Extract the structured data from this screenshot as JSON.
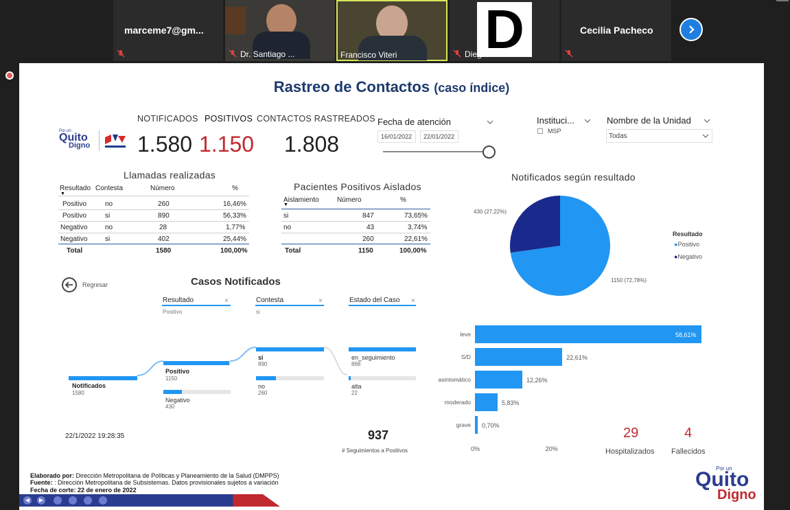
{
  "participants": [
    {
      "name": "marceme7@gm..."
    },
    {
      "name": "Dr. Santiago ..."
    },
    {
      "name": "Francisco Viteri"
    },
    {
      "name": "Diego Jurado"
    },
    {
      "name": "Cecilia Pacheco"
    }
  ],
  "diego_initial": "D",
  "slide": {
    "title": "Rastreo de Contactos",
    "title_suffix": "(caso índice)",
    "logo_line1": "Por un",
    "logo_line2": "Quito",
    "logo_line3": "Digno",
    "kpis": {
      "notificados_label": "NOTIFICADOS",
      "notificados_value": "1.580",
      "positivos_label": "POSITIVOS",
      "positivos_value": "1.150",
      "contactos_label": "CONTACTOS RASTREADOS",
      "contactos_value": "1.808"
    },
    "filters": {
      "fecha_label": "Fecha de atención",
      "fecha_from": "16/01/2022",
      "fecha_to": "22/01/2022",
      "institucion_label": "Instituci...",
      "institucion_option": "MSP",
      "unidad_label": "Nombre de la Unidad",
      "unidad_value": "Todas"
    },
    "llamadas": {
      "title": "Llamadas realizadas",
      "headers": [
        "Resultado",
        "Contesta",
        "Número",
        "%"
      ],
      "rows": [
        [
          "Positivo",
          "no",
          "260",
          "16,46%"
        ],
        [
          "Positivo",
          "si",
          "890",
          "56,33%"
        ],
        [
          "Negativo",
          "no",
          "28",
          "1,77%"
        ],
        [
          "Negativo",
          "si",
          "402",
          "25,44%"
        ]
      ],
      "total": [
        "Total",
        "",
        "1580",
        "100,00%"
      ]
    },
    "aislados": {
      "title": "Pacientes Positivos Aislados",
      "headers": [
        "Aislamiento",
        "Número",
        "%"
      ],
      "rows": [
        [
          "si",
          "847",
          "73,65%"
        ],
        [
          "no",
          "43",
          "3,74%"
        ],
        [
          "",
          "260",
          "22,61%"
        ]
      ],
      "total": [
        "Total",
        "1150",
        "100,00%"
      ]
    },
    "casos": {
      "back_label": "Regresar",
      "title": "Casos Notificados",
      "col1": "Resultado",
      "col1_sub": "Positivo",
      "col2": "Contesta",
      "col2_sub": "si",
      "col3": "Estado del Caso",
      "notificados_label": "Notificados",
      "notificados_val": "1580",
      "positivo_label": "Positivo",
      "positivo_val": "1150",
      "negativo_label": "Negativo",
      "negativo_val": "430",
      "si_label": "si",
      "si_val": "890",
      "no_label": "no",
      "no_val": "260",
      "seg_label": "en_seguimiento",
      "seg_val": "868",
      "alta_label": "alta",
      "alta_val": "22",
      "timestamp": "22/1/2022 19:28:35",
      "seguimientos_value": "937",
      "seguimientos_label": "# Seguimientos a Positivos"
    },
    "pie": {
      "title": "Notificados según resultado",
      "legend_title": "Resultado",
      "label_neg": "430 (27,22%)",
      "label_pos": "1150 (72,78%)"
    },
    "indicators": {
      "hospitalizados_value": "29",
      "hospitalizados_label": "Hospitalizados",
      "fallecidos_value": "4",
      "fallecidos_label": "Fallecidos"
    },
    "footer": {
      "line1_b": "Elaborado por:",
      "line1": " Dirección Metropolitana de Políticas y Planeamiento de la Salud (DMPPS)",
      "line2_b": "Fuente:",
      "line2": " : Dirección Metropolitana de Subsistemas. Datos provisionales sujetos a variación",
      "line3": "Fecha de corte: 22 de enero de 2022"
    }
  },
  "chart_data": [
    {
      "type": "pie",
      "title": "Notificados según resultado",
      "legend": [
        "Positivo",
        "Negativo"
      ],
      "values": [
        1150,
        430
      ],
      "labels": [
        "1150 (72,78%)",
        "430 (27,22%)"
      ],
      "colors": [
        "#2196f3",
        "#1a2a8c"
      ]
    },
    {
      "type": "bar",
      "orientation": "horizontal",
      "categories": [
        "leve",
        "S/D",
        "asintomático",
        "moderado",
        "grave"
      ],
      "values": [
        58.61,
        22.61,
        12.26,
        5.83,
        0.7
      ],
      "value_labels": [
        "58,61%",
        "22,61%",
        "12,26%",
        "5,83%",
        "0,70%"
      ],
      "x_ticks": [
        "0%",
        "20%"
      ],
      "xlim": [
        0,
        58.61
      ]
    }
  ]
}
